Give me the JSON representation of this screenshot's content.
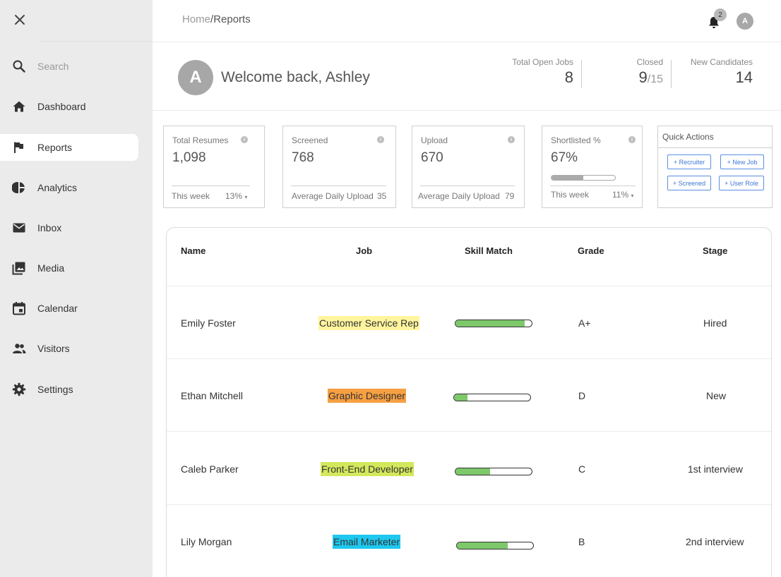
{
  "sidebar": {
    "search_placeholder": "Search",
    "items": [
      {
        "label": "Dashboard",
        "icon": "home-icon"
      },
      {
        "label": "Reports",
        "icon": "flag-icon",
        "active": true
      },
      {
        "label": "Analytics",
        "icon": "pie-chart-icon"
      },
      {
        "label": "Inbox",
        "icon": "mail-icon"
      },
      {
        "label": "Media",
        "icon": "image-icon"
      },
      {
        "label": "Calendar",
        "icon": "calendar-icon"
      },
      {
        "label": "Visitors",
        "icon": "people-icon"
      },
      {
        "label": "Settings",
        "icon": "gear-icon"
      }
    ]
  },
  "header": {
    "breadcrumb_home": "Home",
    "breadcrumb_sep": "/",
    "breadcrumb_current": "Reports",
    "notification_count": "2",
    "avatar_initial": "A"
  },
  "welcome": {
    "avatar_initial": "A",
    "text": "Welcome back, Ashley",
    "kpis": {
      "open_jobs_label": "Total Open Jobs",
      "open_jobs_value": "8",
      "closed_label": "Closed",
      "closed_value": "9",
      "closed_total": "/15",
      "new_candidates_label": "New Candidates",
      "new_candidates_value": "14"
    }
  },
  "cards": {
    "total_resumes": {
      "title": "Total Resumes",
      "value": "1,098",
      "foot_left": "This week",
      "foot_right": "13%"
    },
    "screened": {
      "title": "Screened",
      "value": "768",
      "foot_left": "Average Daily Upload",
      "foot_right": "35"
    },
    "upload": {
      "title": "Upload",
      "value": "670",
      "foot_left": "Average Daily Upload",
      "foot_right": "79"
    },
    "shortlisted": {
      "title": "Shortlisted %",
      "value": "67%",
      "progress": 0.5,
      "foot_left": "This week",
      "foot_right": "11%"
    },
    "quick_actions": {
      "title": "Quick Actions",
      "buttons": [
        "+ Recruiter",
        "+ New Job",
        "+ Screened",
        "+ User Role"
      ]
    }
  },
  "table": {
    "headers": [
      "Name",
      "Job",
      "Skill Match",
      "Grade",
      "Stage"
    ],
    "rows": [
      {
        "name": "Emily Foster",
        "job": "Customer Service Rep",
        "job_color": "#fff59d",
        "skill": 0.91,
        "grade": "A+",
        "stage": "Hired"
      },
      {
        "name": "Ethan Mitchell",
        "job": "Graphic Designer",
        "job_color": "#f7a043",
        "skill": 0.18,
        "grade": "D",
        "stage": "New"
      },
      {
        "name": "Caleb Parker",
        "job": "Front-End Developer",
        "job_color": "#d4e85c",
        "skill": 0.45,
        "grade": "C",
        "stage": "1st interview"
      },
      {
        "name": "Lily Morgan",
        "job": "Email Marketer",
        "job_color": "#1ec8ee",
        "skill": 0.67,
        "grade": "B",
        "stage": "2nd interview"
      }
    ]
  }
}
